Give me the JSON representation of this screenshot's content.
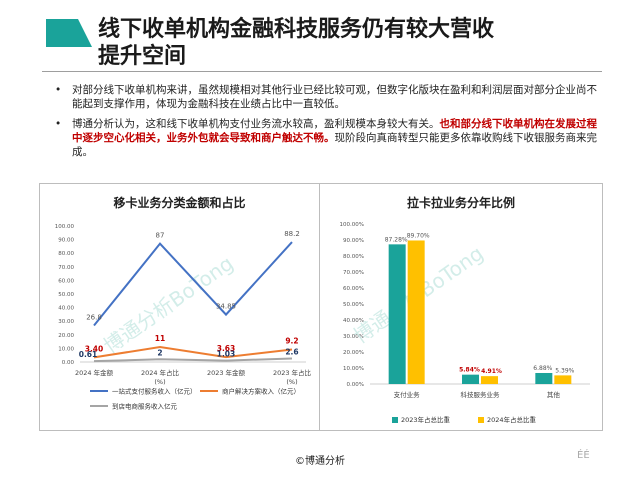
{
  "slide": {
    "title_line1": "线下收单机构金融科技服务仍有较大营收",
    "title_line2": "提升空间",
    "bullets": [
      {
        "text": "对部分线下收单机构来讲，虽然规模相对其他行业已经比较可观，但数字化版块在盈利和利润层面对部分企业尚不能起到支撑作用，体现为金融科技在业绩占比中一直较低。"
      },
      {
        "text_a": "博通分析认为，这和线下收单机构支付业务流水较高，盈利规模本身较大有关。",
        "text_red": "也和部分线下收单机构在发展过程中逐步空心化相关，业务外包就会导致和商户触达不畅。",
        "text_b": "现阶段向真商转型只能更多依靠收购线下收银服务商来完成。"
      }
    ],
    "footer": "©博通分析",
    "page_mark": "ÉÉ",
    "watermark": "博通分析BoTong",
    "colors": {
      "teal": "#1aa39a",
      "blue": "#4472c4",
      "orange": "#ed7d31",
      "gray": "#a5a5a5",
      "gold": "#ffc000",
      "red": "#c00000"
    }
  },
  "chart_data": [
    {
      "type": "line",
      "title": "移卡业务分类金额和占比",
      "categories": [
        "2024 年金额",
        "2024 年占比\n(%)",
        "2023 年金额",
        "2023 年占比\n(%)"
      ],
      "ylim": [
        0,
        100
      ],
      "yticks": [
        "0.00",
        "10.00",
        "20.00",
        "30.00",
        "40.00",
        "50.00",
        "60.00",
        "70.00",
        "80.00",
        "90.00",
        "100.00"
      ],
      "series": [
        {
          "name": "一站式支付服务收入（亿元）",
          "values": [
            26.8,
            87,
            34.85,
            88.2
          ],
          "labels": [
            "26.8",
            "87",
            "34.85",
            "88.2"
          ]
        },
        {
          "name": "商户解决方案收入（亿元）",
          "values": [
            3.4,
            11,
            3.63,
            9.2
          ],
          "labels": [
            "3.40",
            "11",
            "3.63",
            "9.2"
          ]
        },
        {
          "name": "到店电商服务收入亿元",
          "values": [
            0.61,
            2,
            1.03,
            2.6
          ],
          "labels": [
            "0.61",
            "2",
            "1.03",
            "2.6"
          ]
        }
      ]
    },
    {
      "type": "bar",
      "title": "拉卡拉业务分年比例",
      "categories": [
        "支付业务",
        "科技服务业务",
        "其他"
      ],
      "ylim": [
        0,
        100
      ],
      "yticks": [
        "0.00%",
        "10.00%",
        "20.00%",
        "30.00%",
        "40.00%",
        "50.00%",
        "60.00%",
        "70.00%",
        "80.00%",
        "90.00%",
        "100.00%"
      ],
      "series": [
        {
          "name": "2023年占总比重",
          "values": [
            87.28,
            5.84,
            6.88
          ],
          "labels": [
            "87.28%",
            "5.84%",
            "6.88%"
          ]
        },
        {
          "name": "2024年占总比重",
          "values": [
            89.7,
            4.91,
            5.39
          ],
          "labels": [
            "89.70%",
            "4.91%",
            "5.39%"
          ]
        }
      ]
    }
  ]
}
